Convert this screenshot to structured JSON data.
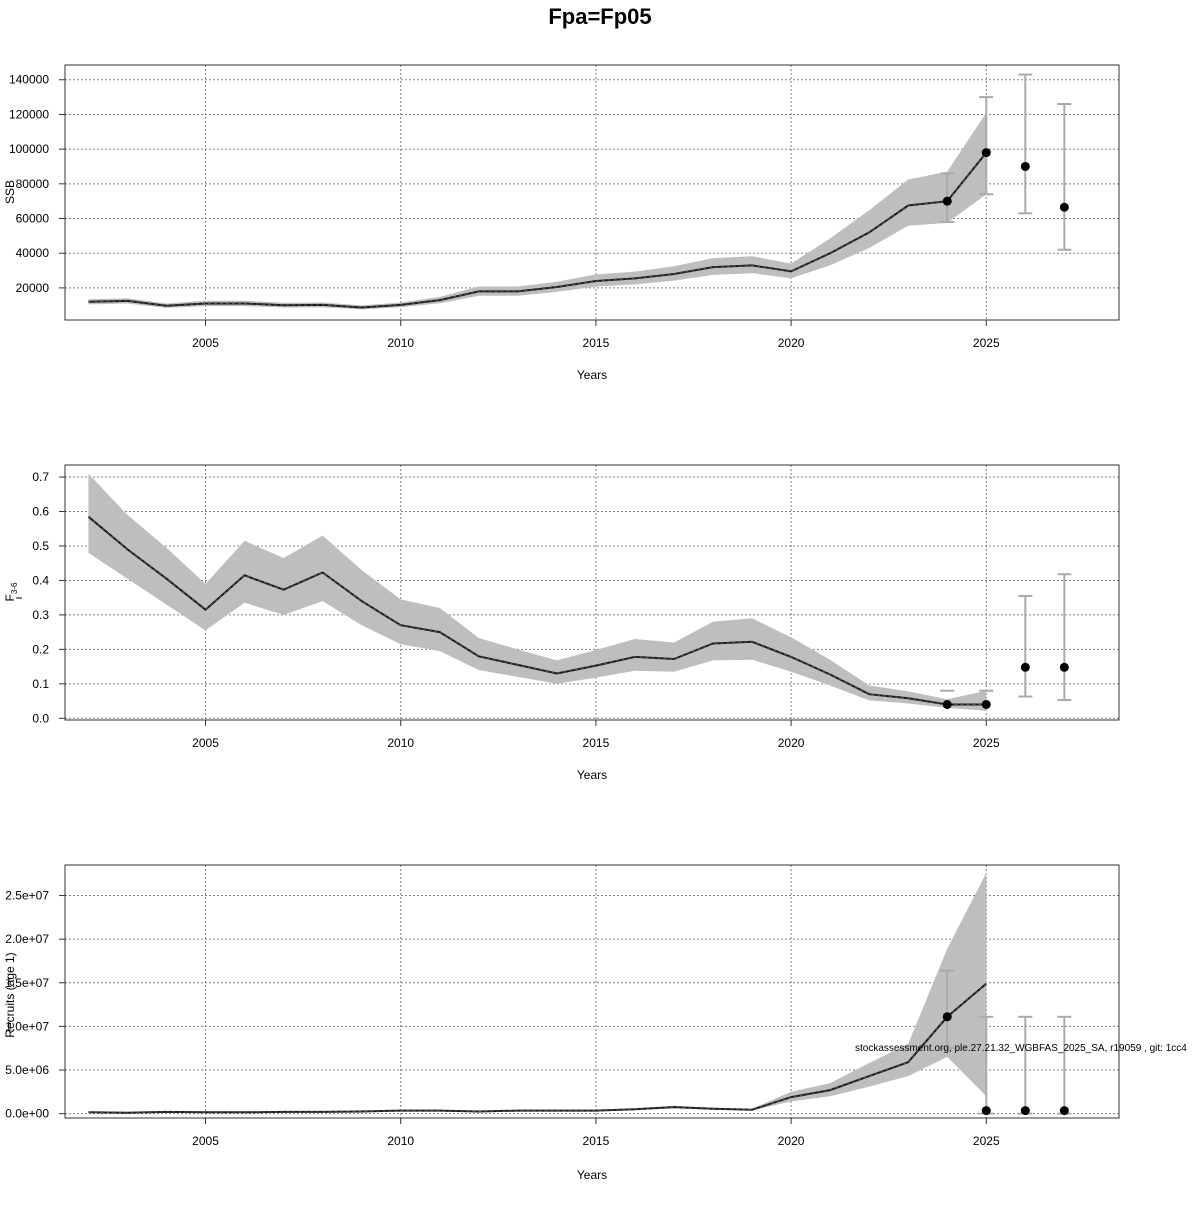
{
  "title": "Fpa=Fp05",
  "footnote": "stockassessment.org, ple.27.21.32_WGBFAS_2025_SA, r19059 , git: 1cc4",
  "colors": {
    "band": "#bebebe",
    "bar": "#aaaaaa",
    "line": "#1a1a1a",
    "point": "#000000",
    "grid": "#808080",
    "frame": "#333333"
  },
  "chart_data": [
    {
      "type": "line",
      "panel": "ssb",
      "xlabel": "Years",
      "ylabel": "SSB",
      "x_ticks": [
        2005,
        2010,
        2015,
        2020,
        2025
      ],
      "y_ticks": [
        20000,
        40000,
        60000,
        80000,
        100000,
        120000,
        140000
      ],
      "y_tick_labels": [
        "20000",
        "40000",
        "60000",
        "80000",
        "100000",
        "120000",
        "140000"
      ],
      "xlim": [
        2001.4,
        2028.4
      ],
      "ylim": [
        1500,
        148500
      ],
      "years": [
        2002,
        2003,
        2004,
        2005,
        2006,
        2007,
        2008,
        2009,
        2010,
        2011,
        2012,
        2013,
        2014,
        2015,
        2016,
        2017,
        2018,
        2019,
        2020,
        2021,
        2022,
        2023,
        2024,
        2025
      ],
      "estimate": [
        12000,
        12500,
        9700,
        11000,
        11000,
        10000,
        10200,
        8700,
        10200,
        13000,
        18000,
        18000,
        20500,
        24000,
        25500,
        28000,
        32000,
        33000,
        29500,
        40000,
        52000,
        67500,
        70000,
        98000
      ],
      "lower": [
        10500,
        11000,
        8500,
        9500,
        9500,
        8700,
        8900,
        7600,
        8900,
        11200,
        15500,
        15500,
        17700,
        20800,
        22000,
        24200,
        27500,
        28500,
        25600,
        33000,
        43000,
        55800,
        57500,
        74000
      ],
      "upper": [
        13500,
        14000,
        11000,
        12600,
        12600,
        11400,
        11600,
        9900,
        11600,
        14800,
        20800,
        20800,
        23600,
        27800,
        29400,
        32500,
        37200,
        38300,
        34000,
        48500,
        64800,
        82500,
        87000,
        121000
      ],
      "forecast": [
        {
          "year": 2024,
          "value": 70000,
          "low": 58000,
          "high": 86000
        },
        {
          "year": 2025,
          "value": 98000,
          "low": 74000,
          "high": 130000
        },
        {
          "year": 2026,
          "value": 90000,
          "low": 63000,
          "high": 143000
        },
        {
          "year": 2027,
          "value": 66500,
          "low": 42000,
          "high": 126000
        }
      ]
    },
    {
      "type": "line",
      "panel": "fbar",
      "xlabel": "Years",
      "ylabel": "F",
      "ylabel_sub": "3-6",
      "x_ticks": [
        2005,
        2010,
        2015,
        2020,
        2025
      ],
      "y_ticks": [
        0.0,
        0.1,
        0.2,
        0.3,
        0.4,
        0.5,
        0.6,
        0.7
      ],
      "y_tick_labels": [
        "0.0",
        "0.1",
        "0.2",
        "0.3",
        "0.4",
        "0.5",
        "0.6",
        "0.7"
      ],
      "xlim": [
        2001.4,
        2028.4
      ],
      "ylim": [
        -0.005,
        0.735
      ],
      "years": [
        2002,
        2003,
        2004,
        2005,
        2006,
        2007,
        2008,
        2009,
        2010,
        2011,
        2012,
        2013,
        2014,
        2015,
        2016,
        2017,
        2018,
        2019,
        2020,
        2021,
        2022,
        2023,
        2024,
        2025
      ],
      "estimate": [
        0.585,
        0.49,
        0.405,
        0.315,
        0.415,
        0.373,
        0.423,
        0.34,
        0.27,
        0.25,
        0.18,
        0.155,
        0.13,
        0.153,
        0.178,
        0.172,
        0.217,
        0.222,
        0.178,
        0.127,
        0.07,
        0.058,
        0.04,
        0.04
      ],
      "lower": [
        0.48,
        0.405,
        0.33,
        0.255,
        0.335,
        0.3,
        0.34,
        0.27,
        0.215,
        0.195,
        0.14,
        0.12,
        0.1,
        0.118,
        0.138,
        0.135,
        0.168,
        0.17,
        0.135,
        0.095,
        0.052,
        0.043,
        0.03,
        0.022
      ],
      "upper": [
        0.71,
        0.59,
        0.495,
        0.39,
        0.515,
        0.465,
        0.53,
        0.43,
        0.345,
        0.32,
        0.233,
        0.2,
        0.168,
        0.198,
        0.23,
        0.22,
        0.28,
        0.29,
        0.235,
        0.17,
        0.095,
        0.078,
        0.055,
        0.08
      ]
    }
  ]
}
